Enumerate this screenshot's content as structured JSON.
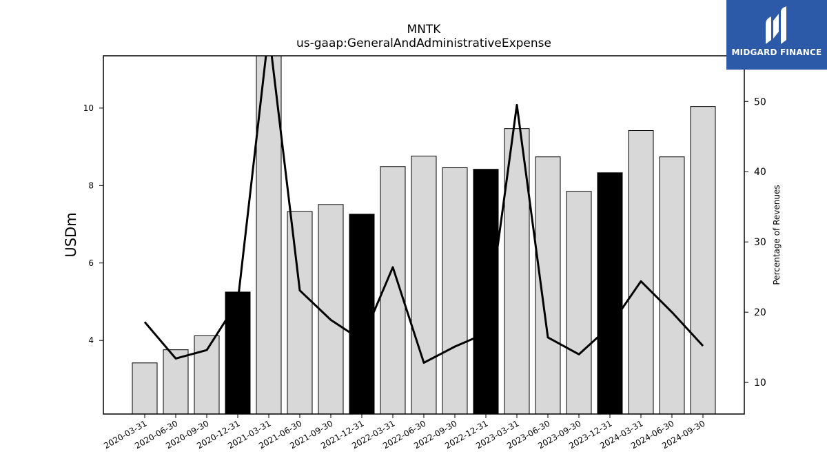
{
  "chart_data": {
    "type": "bar",
    "title": "MNTK",
    "subtitle": "us-gaap:GeneralAndAdministrativeExpense",
    "ylabel": "USDm",
    "y2label": "Percentage of Revenues",
    "categories": [
      "2020-03-31",
      "2020-06-30",
      "2020-09-30",
      "2020-12-31",
      "2021-03-31",
      "2021-06-30",
      "2021-09-30",
      "2021-12-31",
      "2022-03-31",
      "2022-06-30",
      "2022-09-30",
      "2022-12-31",
      "2023-03-31",
      "2023-06-30",
      "2023-09-30",
      "2023-12-31",
      "2024-03-31",
      "2024-06-30",
      "2024-09-30"
    ],
    "series": [
      {
        "type": "bar",
        "values": [
          3.42,
          3.76,
          4.12,
          5.25,
          11.4,
          7.33,
          7.51,
          7.26,
          8.49,
          8.76,
          8.46,
          8.42,
          9.47,
          8.74,
          7.85,
          8.33,
          9.42,
          8.74,
          10.04
        ],
        "highlight_indices": [
          3,
          7,
          11,
          15
        ],
        "color": "#d8d8d8",
        "highlight_color": "#000000"
      },
      {
        "type": "line",
        "axis": "right",
        "values": [
          18.6,
          13.4,
          14.6,
          21.5,
          60.0,
          23.1,
          18.9,
          16.0,
          26.4,
          12.8,
          15.1,
          17.0,
          49.5,
          16.4,
          14.0,
          18.0,
          24.4,
          20.0,
          15.2
        ],
        "color": "#000000"
      }
    ],
    "ylim": [
      2.1,
      11.35
    ],
    "yticks": [
      4,
      6,
      8,
      10
    ],
    "y2lim": [
      5.5,
      56.5
    ],
    "y2ticks": [
      10,
      20,
      30,
      40,
      50
    ],
    "grid": false,
    "legend": "none"
  },
  "logo": {
    "name": "mh-monogram-icon",
    "text": "MIDGARD FINANCE",
    "color": "#2d5aa8"
  }
}
